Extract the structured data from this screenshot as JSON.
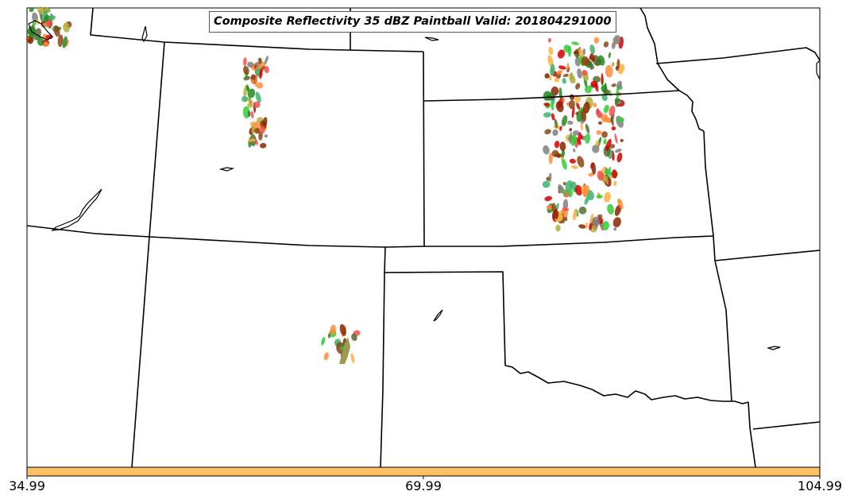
{
  "title": "Composite Reflectivity 35 dBZ Paintball Valid: 201804291000",
  "colorbar": {
    "color": "#ffc164",
    "ticks": [
      "34.99",
      "69.99",
      "104.99"
    ],
    "tick_values": [
      34.99,
      69.99,
      104.99
    ],
    "range": [
      34.99,
      104.99
    ]
  },
  "icons": {
    "state-boundaries": "state-boundary-lines",
    "water-bodies": "lake-outline"
  },
  "paintball_colors": [
    "#d00000",
    "#f05050",
    "#ff8c3a",
    "#ffb040",
    "#228b22",
    "#3cb371",
    "#32cd32",
    "#b0b040",
    "#8b2500",
    "#8b4513",
    "#556b2f",
    "#808080"
  ]
}
